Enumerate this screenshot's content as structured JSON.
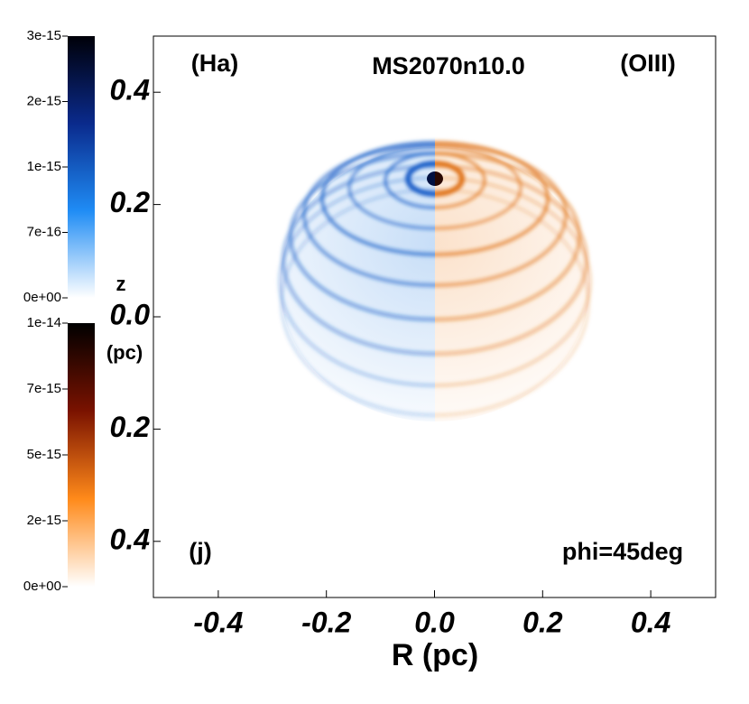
{
  "chart_data": {
    "type": "image",
    "title": "MS2070n10.0",
    "annotations": [
      "(Ha)",
      "(OIII)",
      "(j)",
      "phi=45deg"
    ],
    "x_label": "R (pc)",
    "y_label": [
      "z",
      "(pc)"
    ],
    "xlim": [
      -0.52,
      0.52
    ],
    "ylim": [
      -0.5,
      0.5
    ],
    "xticks": [
      -0.4,
      -0.2,
      {
        "value": 0,
        "label": "0.0"
      },
      0.2,
      0.4
    ],
    "yticks": [
      {
        "value": -0.4,
        "label": "0.4"
      },
      {
        "value": -0.2,
        "label": "0.2"
      },
      {
        "value": 0,
        "label": "0.0"
      },
      0.2,
      0.4
    ],
    "colorbars": [
      {
        "colors": [
          "#000008",
          "#0a2a8c",
          "#1f8cf5",
          "#ffffff"
        ],
        "tick_labels": [
          "3e-15",
          "2e-15",
          "1e-15",
          "7e-16",
          "0e+00"
        ]
      },
      {
        "colors": [
          "#000000",
          "#7a1200",
          "#ff8a1a",
          "#ffffff"
        ],
        "tick_labels": [
          "1e-14",
          "7e-15",
          "5e-15",
          "2e-15",
          "0e+00"
        ]
      }
    ]
  }
}
